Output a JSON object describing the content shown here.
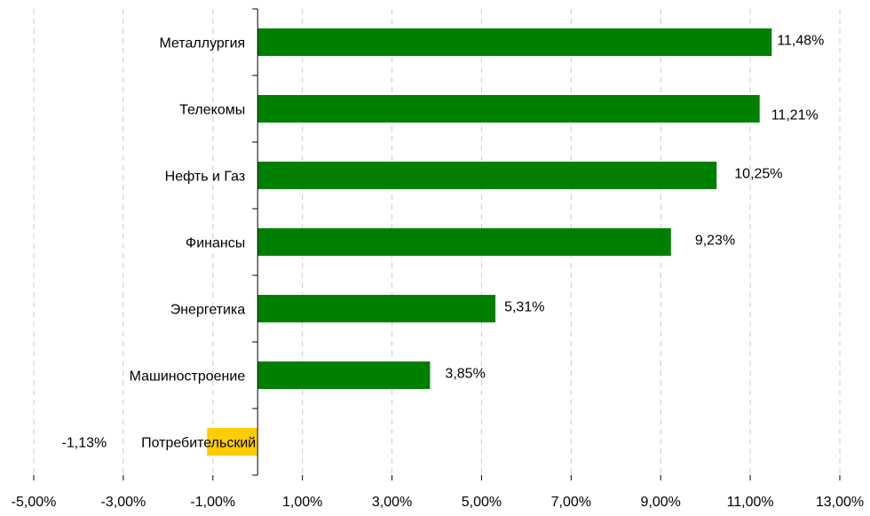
{
  "chart_data": {
    "type": "bar",
    "orientation": "horizontal",
    "categories": [
      "Металлургия",
      "Телекомы",
      "Нефть и Газ",
      "Финансы",
      "Энергетика",
      "Машиностроение",
      "Потребительский"
    ],
    "values": [
      11.48,
      11.21,
      10.25,
      9.23,
      5.31,
      3.85,
      -1.13
    ],
    "value_labels": [
      "11,48%",
      "11,21%",
      "10,25%",
      "9,23%",
      "5,31%",
      "3,85%",
      "-1,13%"
    ],
    "xlim": [
      -5,
      13
    ],
    "xticks": [
      -5,
      -3,
      -1,
      1,
      3,
      5,
      7,
      9,
      11,
      13
    ],
    "xtick_labels": [
      "-5,00%",
      "-3,00%",
      "-1,00%",
      "1,00%",
      "3,00%",
      "5,00%",
      "7,00%",
      "9,00%",
      "11,00%",
      "13,00%"
    ],
    "grid": "vertical dashed",
    "legend": "none",
    "colors": {
      "positive": "#008000",
      "negative": "#FFCC00",
      "grid": "#cccccc",
      "axis": "#000000"
    }
  }
}
